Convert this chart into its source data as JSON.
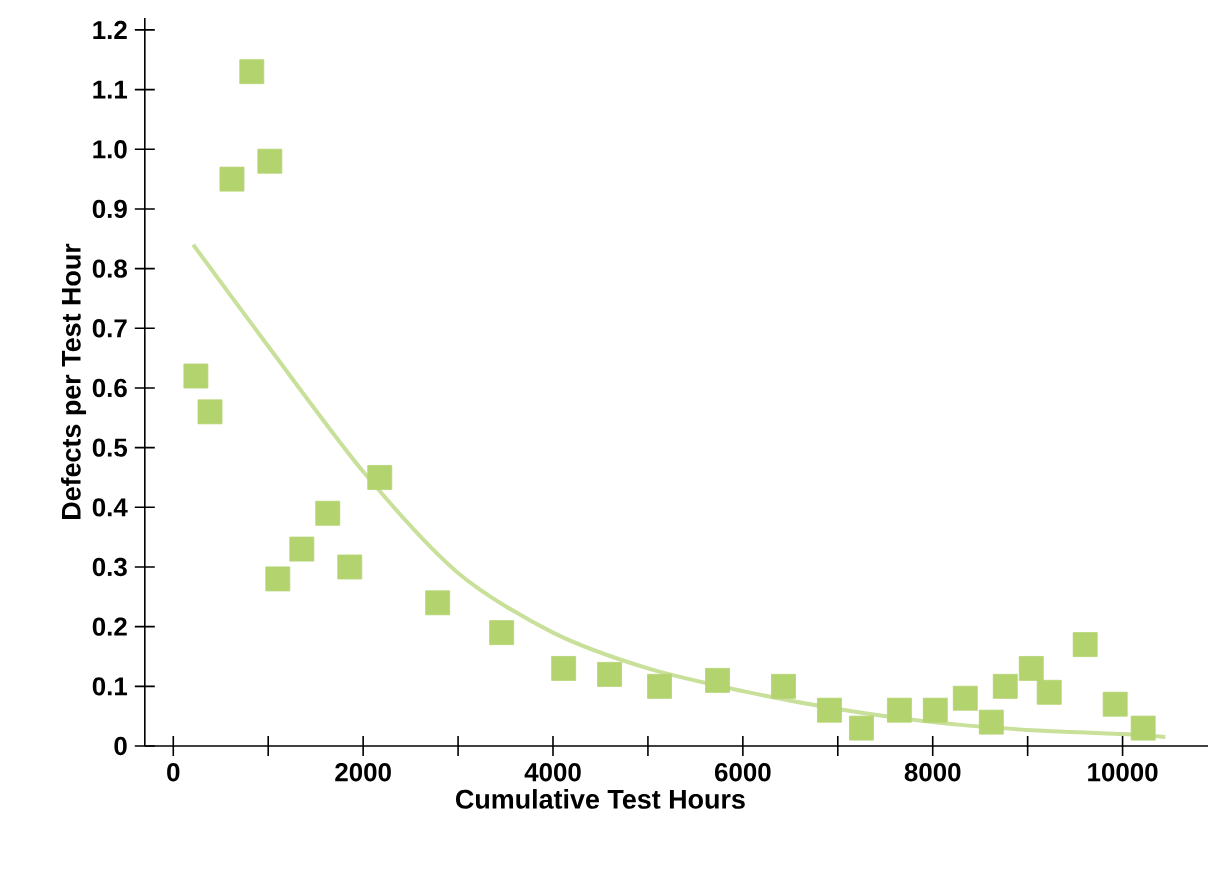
{
  "chart_data": {
    "type": "scatter",
    "xlabel": "Cumulative Test Hours",
    "ylabel": "Defects per Test Hour",
    "marker": "square",
    "xlim": [
      -300,
      10900
    ],
    "ylim": [
      0,
      1.22
    ],
    "xticks": [
      0,
      {
        "value": 1000,
        "label": null
      },
      2000,
      {
        "value": 3000,
        "label": null
      },
      4000,
      {
        "value": 5000,
        "label": null
      },
      6000,
      {
        "value": 7000,
        "label": null
      },
      8000,
      {
        "value": 9000,
        "label": null
      },
      10000
    ],
    "yticks": [
      0,
      0.1,
      0.2,
      0.3,
      0.4,
      0.5,
      0.6,
      0.7,
      0.8,
      0.9,
      {
        "value": 1.0,
        "label": "1.0"
      },
      1.1,
      1.2
    ],
    "series": [
      {
        "color": "#b3d36f",
        "x": [
          238,
          387,
          618,
          827,
          1017,
          1101,
          1354,
          1627,
          1859,
          2175,
          2785,
          3459,
          4112,
          4596,
          5122,
          5733,
          6428,
          6912,
          7249,
          7649,
          8027,
          8343,
          8617,
          8764,
          9038,
          9227,
          9606,
          9922,
          10217
        ],
        "values": [
          0.62,
          0.56,
          0.95,
          1.13,
          0.98,
          0.28,
          0.33,
          0.39,
          0.3,
          0.45,
          0.24,
          0.19,
          0.13,
          0.12,
          0.1,
          0.11,
          0.1,
          0.06,
          0.03,
          0.06,
          0.06,
          0.08,
          0.04,
          0.1,
          0.13,
          0.09,
          0.17,
          0.07,
          0.03
        ]
      },
      {
        "type": "line",
        "color": "#c8e09a",
        "marker": "none",
        "x": [
          210,
          1000,
          2000,
          3000,
          4000,
          5000,
          6000,
          7000,
          8000,
          9000,
          10000,
          10450
        ],
        "values": [
          0.84,
          0.67,
          0.46,
          0.29,
          0.19,
          0.13,
          0.092,
          0.062,
          0.04,
          0.027,
          0.02,
          0.015
        ]
      }
    ]
  }
}
